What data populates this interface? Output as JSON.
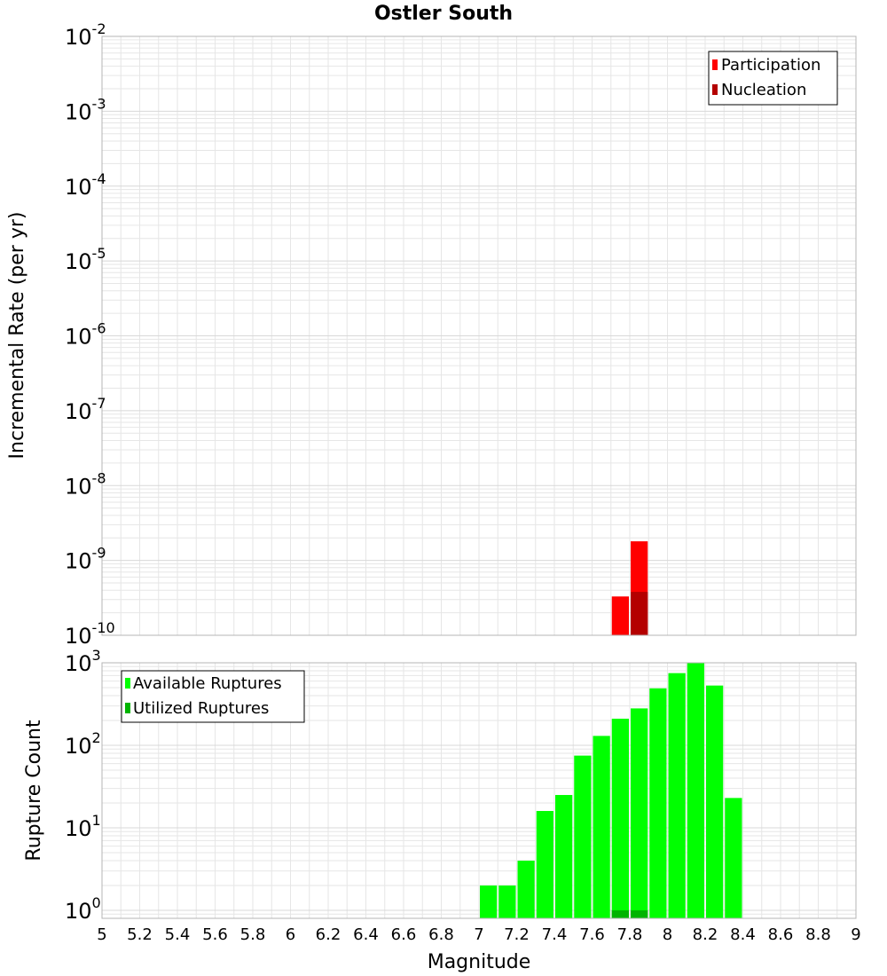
{
  "colors": {
    "participation": "#ff0000",
    "nucleation": "#b40000",
    "available": "#00ff00",
    "utilized": "#00b400",
    "grid": "#e6e6e6",
    "plot_border": "#b4b4b4"
  },
  "chart_data": [
    {
      "type": "bar",
      "title": "Ostler South",
      "xlabel": "",
      "ylabel": "Incremental Rate (per yr)",
      "y_scale": "log",
      "ylim": [
        1e-10,
        0.01
      ],
      "xlim": [
        5,
        9
      ],
      "bar_width": 0.1,
      "y_ticks": [
        {
          "base": "10",
          "exp": "-10",
          "value": 1e-10
        },
        {
          "base": "10",
          "exp": "-9",
          "value": 1e-09
        },
        {
          "base": "10",
          "exp": "-8",
          "value": 1e-08
        },
        {
          "base": "10",
          "exp": "-7",
          "value": 1e-07
        },
        {
          "base": "10",
          "exp": "-6",
          "value": 1e-06
        },
        {
          "base": "10",
          "exp": "-5",
          "value": 1e-05
        },
        {
          "base": "10",
          "exp": "-4",
          "value": 0.0001
        },
        {
          "base": "10",
          "exp": "-3",
          "value": 0.001
        },
        {
          "base": "10",
          "exp": "-2",
          "value": 0.01
        }
      ],
      "legend": {
        "position": "top-right",
        "entries": [
          "Participation",
          "Nucleation"
        ]
      },
      "series": [
        {
          "name": "Participation",
          "x": [
            7.75,
            7.85
          ],
          "values": [
            3.3e-10,
            1.8e-09
          ]
        },
        {
          "name": "Nucleation",
          "x": [
            7.75,
            7.85
          ],
          "values": [
            0,
            3.8e-10
          ]
        }
      ]
    },
    {
      "type": "bar",
      "title": "",
      "xlabel": "Magnitude",
      "ylabel": "Rupture Count",
      "y_scale": "log",
      "ylim": [
        0.8,
        1000
      ],
      "xlim": [
        5,
        9
      ],
      "bar_width": 0.1,
      "x_ticks": [
        "5",
        "5.2",
        "5.4",
        "5.6",
        "5.8",
        "6",
        "6.2",
        "6.4",
        "6.6",
        "6.8",
        "7",
        "7.2",
        "7.4",
        "7.6",
        "7.8",
        "8",
        "8.2",
        "8.4",
        "8.6",
        "8.8",
        "9"
      ],
      "y_ticks": [
        {
          "base": "10",
          "exp": "0",
          "value": 1
        },
        {
          "base": "10",
          "exp": "1",
          "value": 10
        },
        {
          "base": "10",
          "exp": "2",
          "value": 100
        },
        {
          "base": "10",
          "exp": "3",
          "value": 1000
        }
      ],
      "legend": {
        "position": "top-left",
        "entries": [
          "Available Ruptures",
          "Utilized Ruptures"
        ]
      },
      "series": [
        {
          "name": "Available Ruptures",
          "x": [
            7.05,
            7.15,
            7.25,
            7.35,
            7.45,
            7.55,
            7.65,
            7.75,
            7.85,
            7.95,
            8.05,
            8.15,
            8.25,
            8.35
          ],
          "values": [
            2,
            2,
            4,
            16,
            25,
            75,
            130,
            210,
            280,
            490,
            750,
            1000,
            530,
            23
          ]
        },
        {
          "name": "Utilized Ruptures",
          "x": [
            7.75,
            7.85
          ],
          "values": [
            1,
            1
          ]
        }
      ]
    }
  ]
}
